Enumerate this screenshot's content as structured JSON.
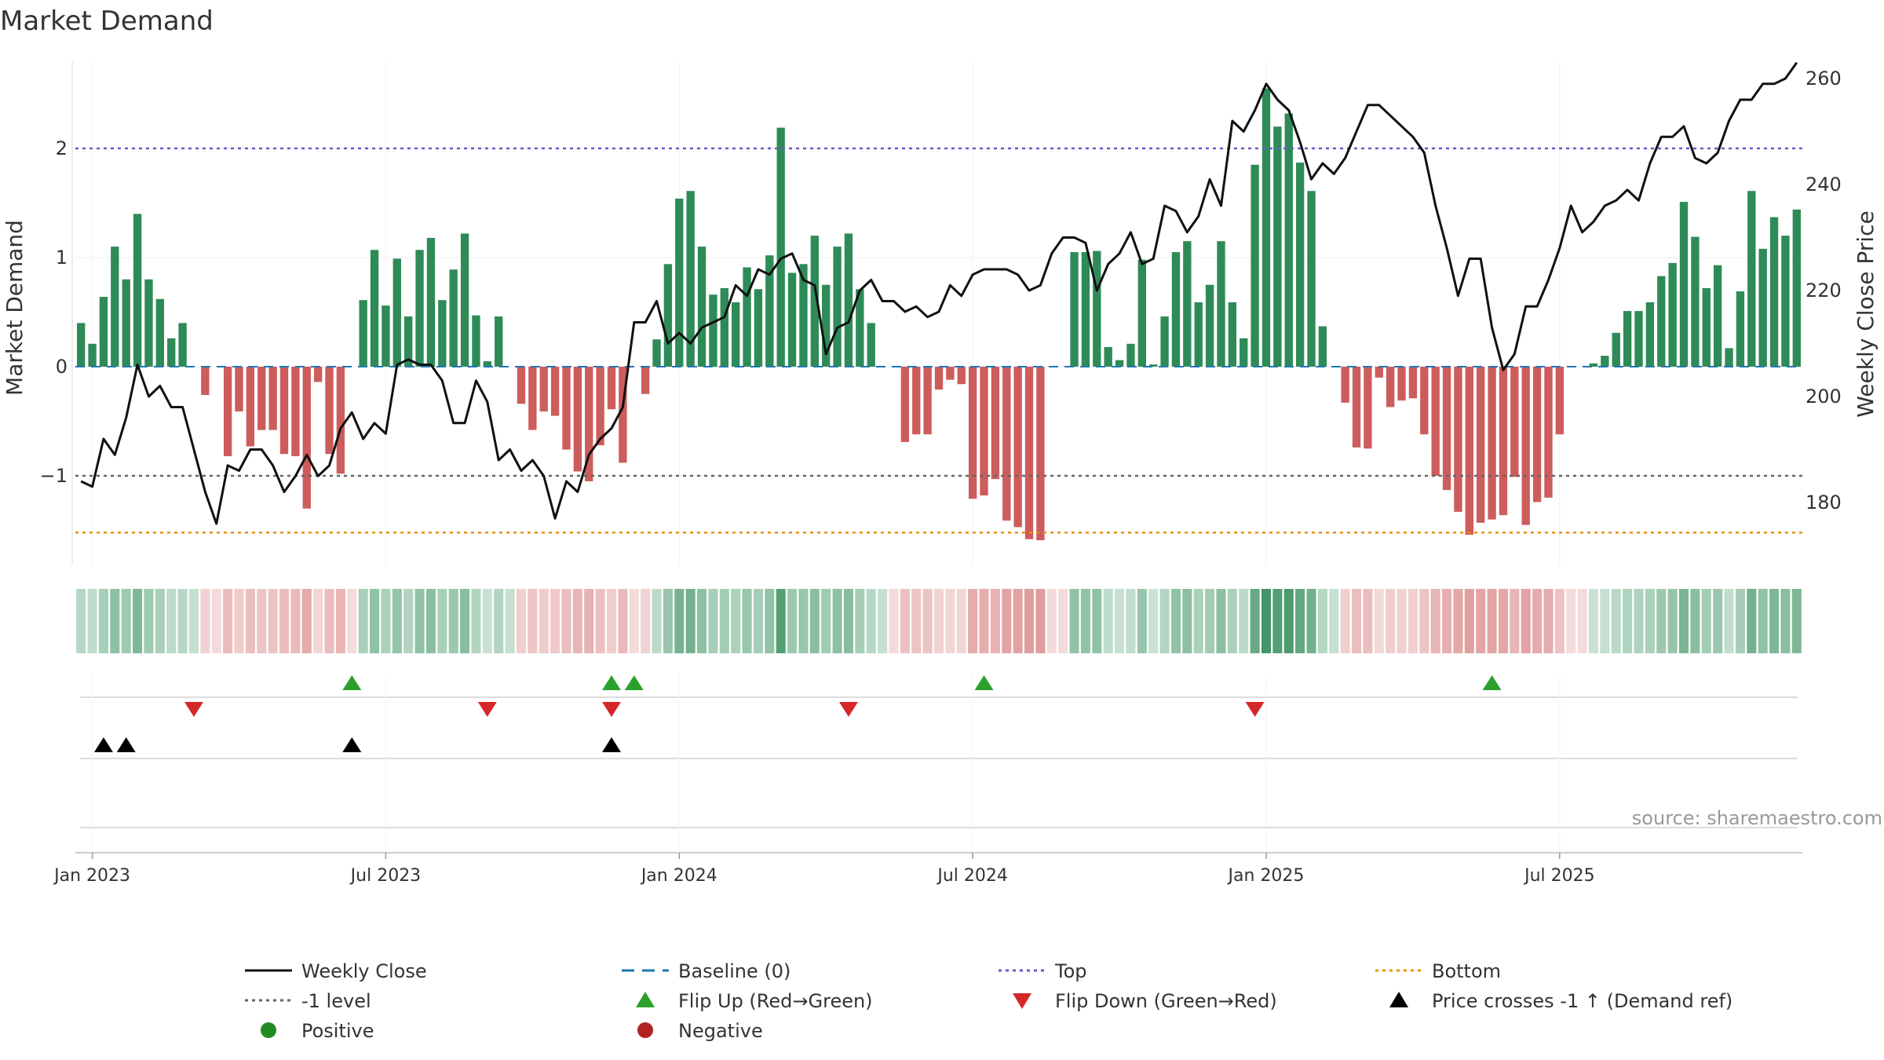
{
  "chart_data": {
    "type": "bar",
    "title": "Market Demand",
    "ylabel": "Market Demand",
    "y2label": "Weekly Close Price",
    "ylim": [
      -1.8,
      2.8
    ],
    "y2lim": [
      170,
      262
    ],
    "yticks": [
      2,
      1,
      0,
      -1
    ],
    "ytick_labels": [
      "2",
      "1",
      "0",
      "−1"
    ],
    "y2ticks": [
      260,
      240,
      220,
      200,
      180
    ],
    "xticks": [
      "Jan 2023",
      "Jul 2023",
      "Jan 2024",
      "Jul 2024",
      "Jan 2025",
      "Jul 2025"
    ],
    "xtick_weeks": [
      1,
      27,
      53,
      79,
      105,
      131
    ],
    "reference_lines": {
      "top": 2,
      "minus_one": -1,
      "bottom": -1.52,
      "baseline": 0
    },
    "demand": [
      0.4,
      0.21,
      0.64,
      1.1,
      0.8,
      1.4,
      0.8,
      0.62,
      0.26,
      0.4,
      0,
      -0.26,
      0,
      -0.82,
      -0.41,
      -0.73,
      -0.58,
      -0.58,
      -0.8,
      -0.82,
      -1.3,
      -0.14,
      -0.8,
      -0.98,
      0,
      0.61,
      1.07,
      0.56,
      0.99,
      0.46,
      1.07,
      1.18,
      0.61,
      0.89,
      1.22,
      0.47,
      0.05,
      0.46,
      0,
      -0.34,
      -0.58,
      -0.41,
      -0.45,
      -0.76,
      -0.96,
      -1.05,
      -0.72,
      -0.39,
      -0.88,
      0,
      -0.25,
      0.25,
      0.94,
      1.54,
      1.61,
      1.1,
      0.66,
      0.72,
      0.59,
      0.91,
      0.71,
      1.02,
      2.19,
      0.86,
      0.94,
      1.2,
      0.75,
      1.1,
      1.22,
      0.71,
      0.4,
      0,
      0,
      -0.69,
      -0.62,
      -0.62,
      -0.21,
      -0.12,
      -0.16,
      -1.21,
      -1.18,
      -1.03,
      -1.41,
      -1.47,
      -1.58,
      -1.59,
      0,
      0,
      1.05,
      1.05,
      1.06,
      0.18,
      0.06,
      0.21,
      0.98,
      0.02,
      0.46,
      1.05,
      1.15,
      0.59,
      0.75,
      1.15,
      0.59,
      0.26,
      1.85,
      2.55,
      2.2,
      2.32,
      1.87,
      1.61,
      0.37,
      0,
      -0.33,
      -0.74,
      -0.75,
      -0.1,
      -0.37,
      -0.31,
      -0.29,
      -0.62,
      -1.0,
      -1.13,
      -1.33,
      -1.54,
      -1.43,
      -1.4,
      -1.36,
      -1.01,
      -1.45,
      -1.24,
      -1.2,
      -0.62,
      0,
      0,
      0.03,
      0.1,
      0.31,
      0.51,
      0.51,
      0.59,
      0.83,
      0.95,
      1.51,
      1.19,
      0.72,
      0.93,
      0.17,
      0.69,
      1.61,
      1.08,
      1.37,
      1.2,
      1.44
    ],
    "price": [
      184,
      183,
      192,
      189,
      196,
      206,
      200,
      202,
      198,
      198,
      190,
      182,
      176,
      187,
      186,
      190,
      190,
      187,
      182,
      185,
      189,
      185,
      187,
      194,
      197,
      192,
      195,
      193,
      206,
      207,
      206,
      206,
      203,
      195,
      195,
      203,
      199,
      188,
      190,
      186,
      188,
      185,
      177,
      184,
      182,
      189,
      192,
      194,
      198,
      214,
      214,
      218,
      210,
      212,
      210,
      213,
      214,
      215,
      221,
      219,
      224,
      223,
      226,
      227,
      222,
      221,
      208,
      213,
      214,
      220,
      222,
      218,
      218,
      216,
      217,
      215,
      216,
      221,
      219,
      223,
      224,
      224,
      224,
      223,
      220,
      221,
      227,
      230,
      230,
      229,
      220,
      225,
      227,
      231,
      225,
      226,
      236,
      235,
      231,
      234,
      241,
      236,
      252,
      250,
      254,
      259,
      256,
      254,
      248,
      241,
      244,
      242,
      245,
      250,
      255,
      255,
      253,
      251,
      249,
      246,
      236,
      228,
      219,
      226,
      226,
      213,
      205,
      208,
      217,
      217,
      222,
      228,
      236,
      231,
      233,
      236,
      237,
      239,
      237,
      244,
      249,
      249,
      251,
      245,
      244,
      246,
      252,
      256,
      256,
      259,
      259,
      260,
      263
    ]
  },
  "legend": {
    "weekly_close": "Weekly Close",
    "baseline": "Baseline (0)",
    "top": "Top",
    "bottom": "Bottom",
    "minus_one": "-1 level",
    "flip_up": "Flip Up (Red→Green)",
    "flip_down": "Flip Down (Green→Red)",
    "price_cross": "Price crosses -1 ↑ (Demand ref)",
    "positive": "Positive",
    "negative": "Negative"
  },
  "events": {
    "flip_up_weeks": [
      24,
      47,
      49,
      80,
      125
    ],
    "flip_down_weeks": [
      10,
      36,
      47,
      68,
      104
    ],
    "price_cross_weeks": [
      2,
      4,
      24,
      47
    ]
  },
  "source": "source: sharemaestro.com",
  "colors": {
    "positive": "#2e8b57",
    "negative": "#cd5c5c",
    "price": "#111111",
    "baseline": "#1f77b4",
    "top": "#6a5acd",
    "bottom": "#e69500",
    "minus_one": "#666666",
    "flip_up": "#2ca02c",
    "flip_down": "#d62728",
    "positive_marker": "#228b22",
    "negative_marker": "#b22222"
  }
}
